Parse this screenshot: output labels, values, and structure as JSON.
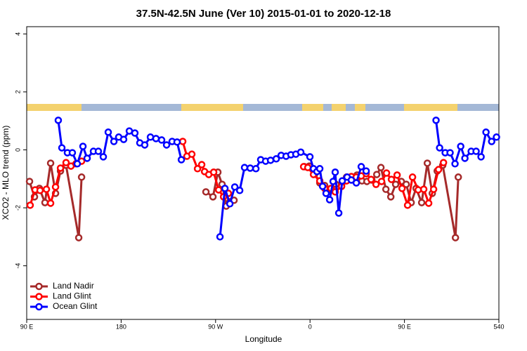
{
  "chart_data": {
    "type": "line",
    "title": "37.5N-42.5N June (Ver 10)   2015-01-01 to 2020-12-18",
    "x_label": "Longitude",
    "y_label": "XCO2 - MLO trend (ppm)",
    "xlim": [
      90,
      540
    ],
    "ylim": [
      -5.85,
      4.25
    ],
    "xticks": [
      {
        "value": 90,
        "label": "90 E"
      },
      180,
      {
        "value": 270,
        "label": "90 W"
      },
      {
        "value": 360,
        "label": "0"
      },
      {
        "value": 450,
        "label": "90 E"
      },
      540
    ],
    "yticks": [
      4,
      2,
      0,
      -2,
      -4
    ],
    "legend": "bottom-left",
    "series": [
      {
        "name": "Land Nadir",
        "color": "#a52a2a",
        "x": [
          92.7,
          97.4,
          102.1,
          107.4,
          112.8,
          117.5,
          122.2,
          127.5,
          139.6,
          142.3,
          null,
          260.8,
          267.5,
          272.2,
          276.2,
          280.2,
          283.6,
          287.6,
          null,
          354.6,
          359.3,
          364.6,
          369.3,
          374.0,
          379.4,
          384.7,
          390.1,
          394.8,
          399.4,
          404.8,
          409.5,
          414.2,
          418.9,
          423.6,
          427.6,
          432.3,
          437.0,
          441.6,
          447.0,
          451.7,
          456.4,
          461.1,
          466.4,
          471.8,
          476.5,
          481.2,
          486.5,
          498.6,
          501.3
        ],
        "values": [
          -1.09,
          -1.62,
          -1.33,
          -1.82,
          -0.46,
          -1.5,
          -0.73,
          -0.53,
          -3.03,
          -0.94,
          null,
          -1.45,
          -1.62,
          -0.77,
          -1.19,
          -1.94,
          -1.79,
          -1.74,
          null,
          -0.58,
          -0.56,
          -0.82,
          -1.14,
          -1.23,
          -1.38,
          -1.19,
          -1.19,
          -0.94,
          -1.04,
          -0.87,
          -1.07,
          -1.09,
          -1.04,
          -0.85,
          -0.61,
          -1.36,
          -1.62,
          -1.19,
          -1.09,
          -1.19,
          -1.82,
          -1.33,
          -1.82,
          -0.46,
          -1.5,
          -0.73,
          -0.53,
          -3.03,
          -0.94
        ]
      },
      {
        "name": "Land Glint",
        "color": "#ff0000",
        "x": [
          93.3,
          98.0,
          102.7,
          108.8,
          112.8,
          117.5,
          122.2,
          127.5,
          132.2,
          136.9,
          142.3,
          null,
          238.7,
          242.7,
          247.4,
          252.8,
          256.8,
          259.5,
          263.5,
          268.2,
          272.9,
          277.6,
          282.2,
          null,
          353.9,
          357.9,
          363.3,
          369.3,
          374.0,
          380.0,
          384.0,
          390.1,
          394.8,
          399.4,
          404.1,
          408.8,
          413.5,
          418.2,
          422.9,
          428.2,
          432.9,
          437.6,
          443.0,
          447.7,
          453.0,
          457.7,
          463.1,
          468.4,
          473.1,
          477.8,
          482.5,
          487.2
        ],
        "values": [
          -1.91,
          -1.38,
          -1.4,
          -1.36,
          -1.84,
          -1.28,
          -0.63,
          -0.44,
          -0.56,
          -0.48,
          -0.39,
          null,
          0.29,
          -0.22,
          -0.15,
          -0.65,
          -0.51,
          -0.75,
          -0.85,
          -0.77,
          -1.38,
          -1.62,
          -1.5,
          null,
          -0.58,
          -0.61,
          -0.85,
          -1.07,
          -1.33,
          -1.33,
          -1.45,
          -1.26,
          -1.07,
          -0.92,
          -0.94,
          -0.9,
          -0.82,
          -1.02,
          -1.19,
          -1.09,
          -0.8,
          -1.02,
          -0.87,
          -1.33,
          -1.91,
          -0.94,
          -1.38,
          -1.36,
          -1.84,
          -1.36,
          -0.68,
          -0.44
        ]
      },
      {
        "name": "Ocean Glint",
        "color": "#0000ff",
        "x": [
          120.1,
          123.5,
          128.8,
          133.5,
          138.2,
          143.6,
          147.6,
          153.6,
          158.3,
          163.0,
          167.7,
          173.1,
          177.7,
          182.4,
          187.8,
          193.1,
          197.8,
          202.5,
          207.9,
          213.2,
          218.6,
          223.3,
          228.6,
          233.3,
          237.4,
          null,
          274.2,
          278.9,
          283.6,
          288.3,
          293.0,
          297.6,
          303.0,
          308.4,
          313.0,
          317.7,
          322.4,
          327.8,
          332.5,
          337.2,
          341.8,
          346.5,
          351.2,
          359.9,
          363.3,
          366.6,
          369.3,
          372.0,
          375.3,
          378.7,
          382.0,
          384.0,
          387.4,
          390.7,
          395.4,
          399.4,
          404.1,
          408.8,
          413.5,
          null,
          480.1,
          483.5,
          488.8,
          493.5,
          498.2,
          503.6,
          507.6,
          513.6,
          518.3,
          523.0,
          527.7,
          533.1,
          537.7
        ],
        "values": [
          1.02,
          0.07,
          -0.1,
          -0.1,
          -0.48,
          0.12,
          -0.29,
          -0.05,
          -0.05,
          -0.24,
          0.61,
          0.29,
          0.44,
          0.36,
          0.65,
          0.58,
          0.24,
          0.17,
          0.44,
          0.39,
          0.34,
          0.17,
          0.29,
          0.27,
          -0.34,
          null,
          -3.0,
          -1.33,
          -1.86,
          -1.28,
          -1.4,
          -0.61,
          -0.63,
          -0.65,
          -0.34,
          -0.39,
          -0.36,
          -0.31,
          -0.19,
          -0.22,
          -0.17,
          -0.15,
          -0.08,
          -0.24,
          -0.65,
          -0.75,
          -0.65,
          -1.26,
          -1.5,
          -1.72,
          -1.09,
          -0.77,
          -2.18,
          -1.07,
          -0.94,
          -1.04,
          -1.14,
          -0.58,
          -0.73,
          null,
          1.02,
          0.07,
          -0.1,
          -0.1,
          -0.48,
          0.12,
          -0.29,
          -0.05,
          -0.05,
          -0.24,
          0.61,
          0.29,
          0.44
        ]
      }
    ]
  }
}
